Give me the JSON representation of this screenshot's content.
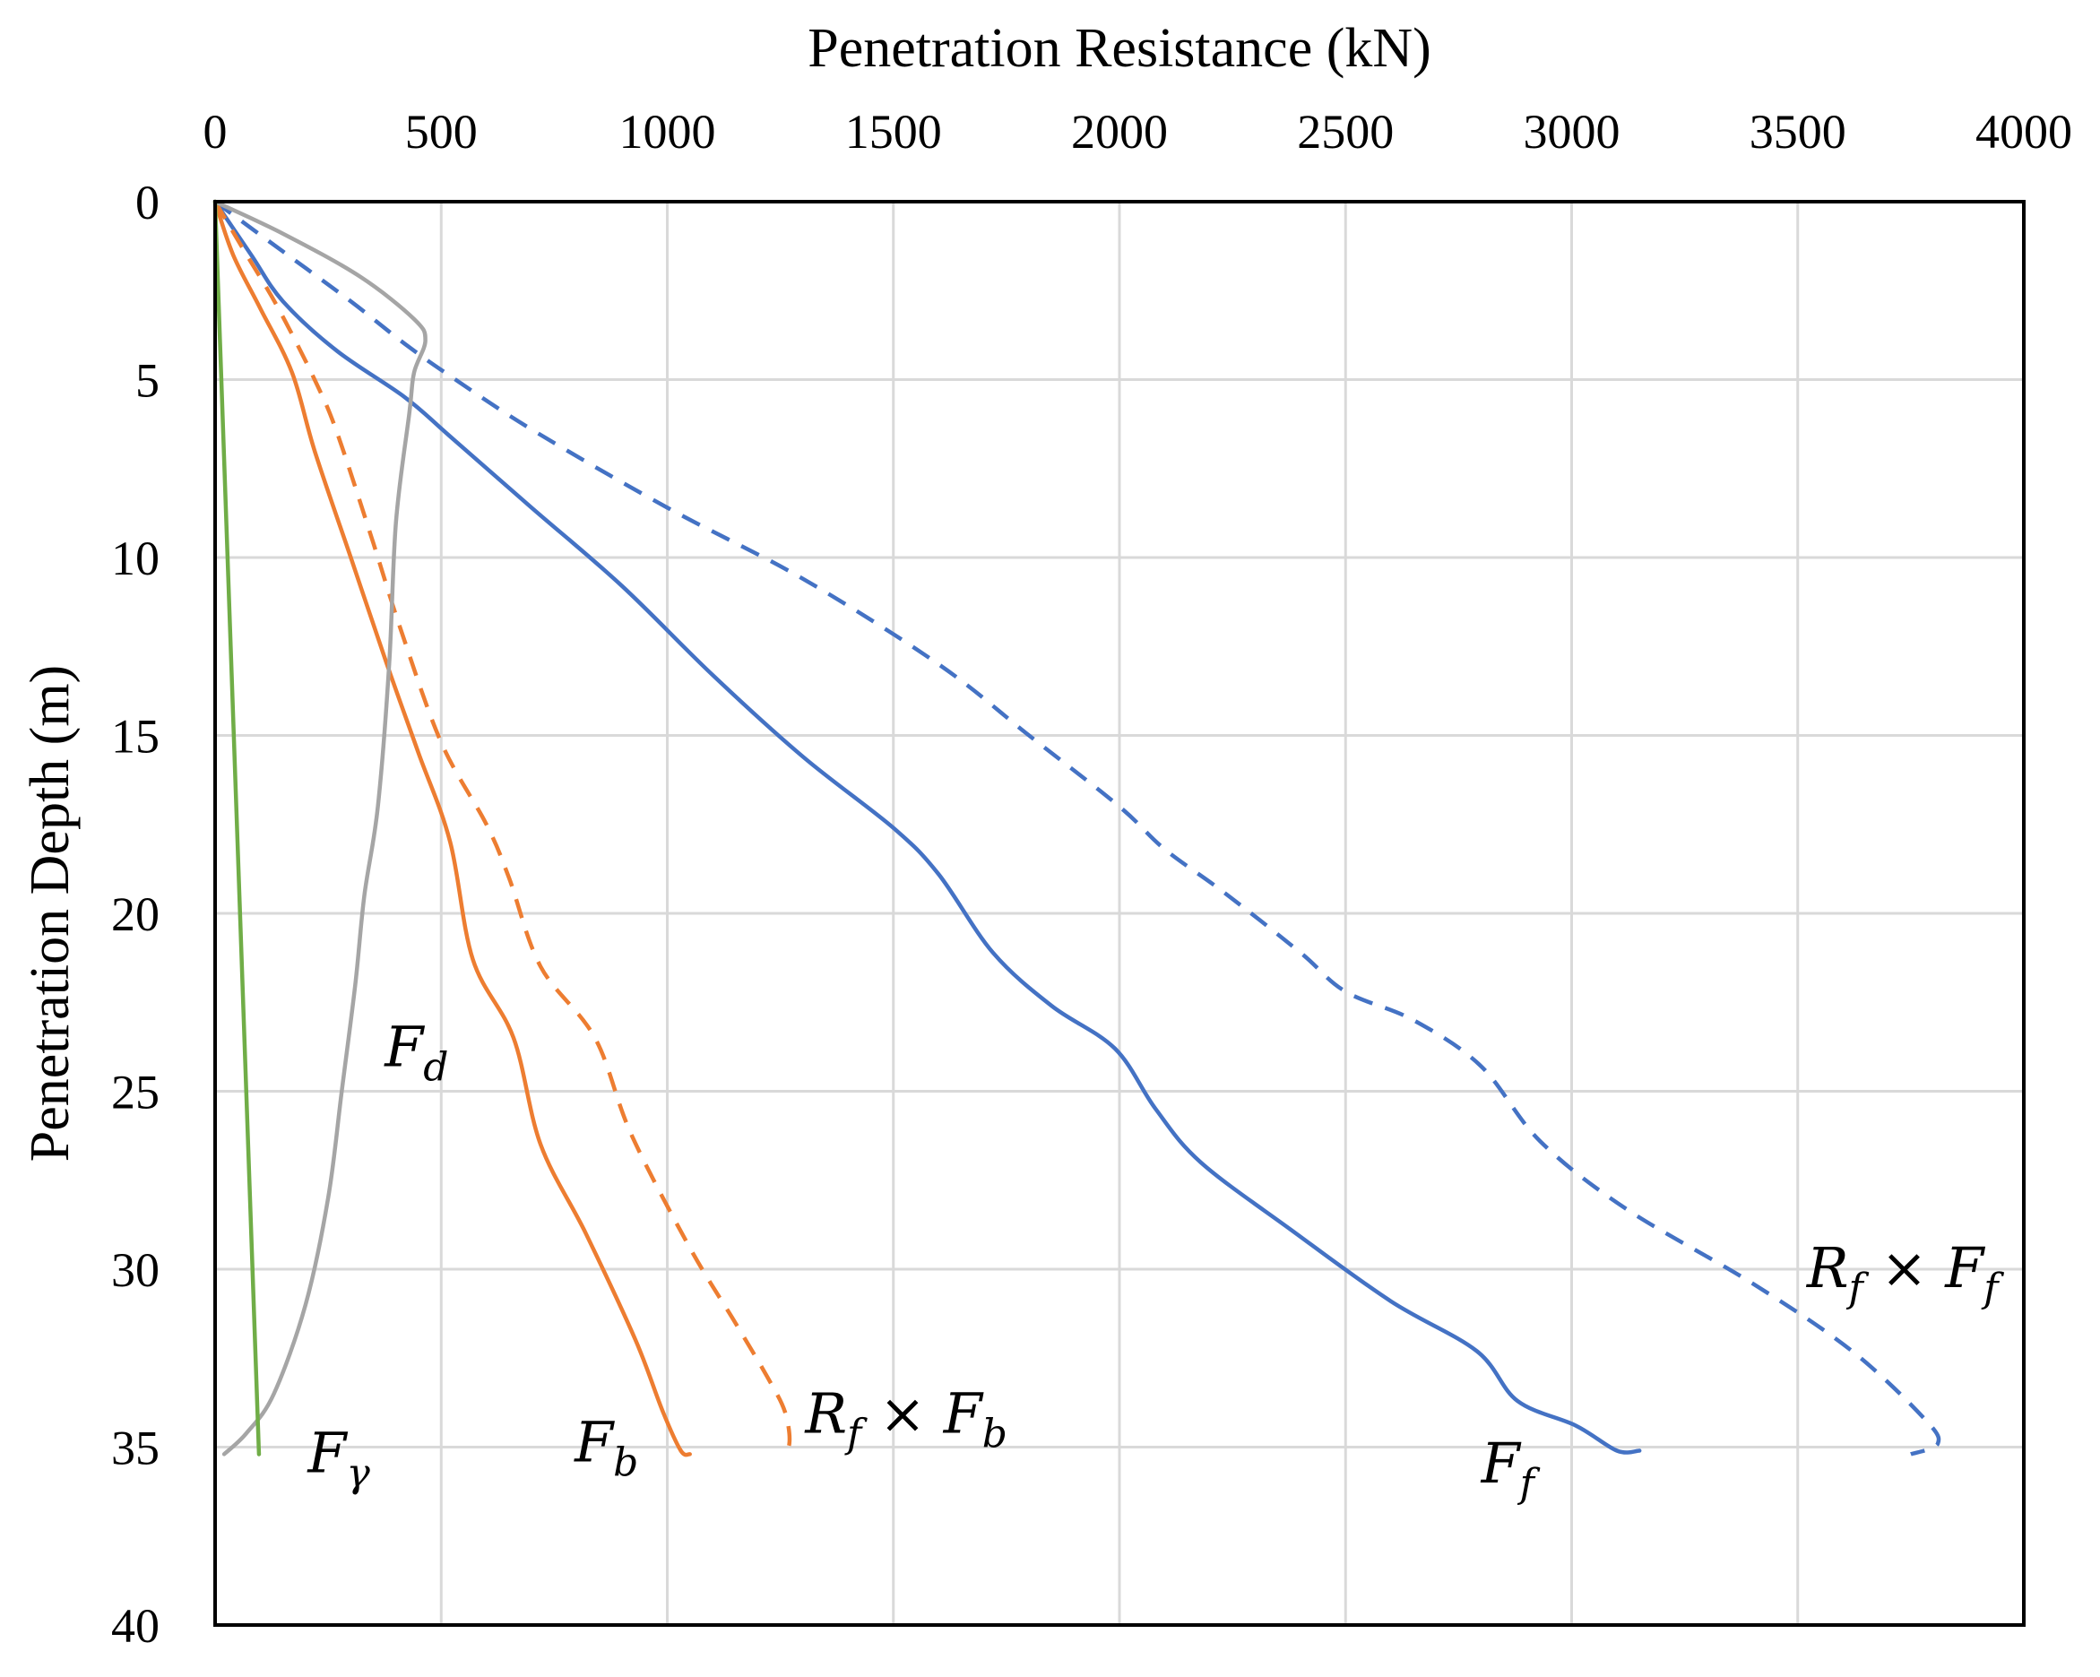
{
  "chart_data": {
    "type": "line",
    "title": "",
    "xlabel": "Penetration Resistance (kN)",
    "ylabel": "Penetration Depth (m)",
    "x_axis_position": "top",
    "y_axis_inverted": true,
    "xlim": [
      0,
      4000
    ],
    "ylim": [
      0,
      40
    ],
    "xticks": [
      "0",
      "500",
      "1000",
      "1500",
      "2000",
      "2500",
      "3000",
      "3500",
      "4000"
    ],
    "yticks": [
      "0",
      "5",
      "10",
      "15",
      "20",
      "25",
      "30",
      "35",
      "40"
    ],
    "grid": true,
    "legend": "none (inline curve labels)",
    "series": [
      {
        "name": "F_f",
        "label_main": "F",
        "label_sub": "f",
        "color": "#4472C4",
        "dash": "solid",
        "points": [
          [
            0,
            0
          ],
          [
            80,
            1.5
          ],
          [
            150,
            2.8
          ],
          [
            270,
            4.2
          ],
          [
            420,
            5.5
          ],
          [
            520,
            6.6
          ],
          [
            700,
            8.6
          ],
          [
            900,
            10.8
          ],
          [
            1100,
            13.3
          ],
          [
            1300,
            15.6
          ],
          [
            1500,
            17.6
          ],
          [
            1600,
            18.9
          ],
          [
            1720,
            21.1
          ],
          [
            1850,
            22.6
          ],
          [
            1990,
            23.8
          ],
          [
            2080,
            25.5
          ],
          [
            2180,
            27.0
          ],
          [
            2380,
            28.9
          ],
          [
            2600,
            30.9
          ],
          [
            2790,
            32.3
          ],
          [
            2880,
            33.7
          ],
          [
            3010,
            34.4
          ],
          [
            3100,
            35.1
          ],
          [
            3150,
            35.1
          ]
        ]
      },
      {
        "name": "R_f x F_f",
        "label_main": "R",
        "label_sub": "f",
        "label_op": "×",
        "label_main2": "F",
        "label_sub2": "f",
        "color": "#4472C4",
        "dash": "dashed",
        "points": [
          [
            0,
            0
          ],
          [
            150,
            1.4
          ],
          [
            300,
            2.8
          ],
          [
            420,
            4.0
          ],
          [
            520,
            4.9
          ],
          [
            700,
            6.4
          ],
          [
            1000,
            8.6
          ],
          [
            1300,
            10.6
          ],
          [
            1600,
            13.0
          ],
          [
            1800,
            15.0
          ],
          [
            2000,
            17.0
          ],
          [
            2100,
            18.2
          ],
          [
            2230,
            19.4
          ],
          [
            2400,
            21.1
          ],
          [
            2500,
            22.2
          ],
          [
            2650,
            23.0
          ],
          [
            2800,
            24.3
          ],
          [
            2930,
            26.4
          ],
          [
            3120,
            28.3
          ],
          [
            3400,
            30.4
          ],
          [
            3620,
            32.3
          ],
          [
            3780,
            34.2
          ],
          [
            3810,
            34.9
          ],
          [
            3750,
            35.2
          ]
        ]
      },
      {
        "name": "F_b",
        "label_main": "F",
        "label_sub": "b",
        "color": "#ED7D31",
        "dash": "solid",
        "points": [
          [
            0,
            0
          ],
          [
            40,
            1.5
          ],
          [
            100,
            3.0
          ],
          [
            170,
            4.8
          ],
          [
            220,
            7.0
          ],
          [
            300,
            10.0
          ],
          [
            380,
            13.0
          ],
          [
            450,
            15.5
          ],
          [
            520,
            18.0
          ],
          [
            570,
            21.3
          ],
          [
            660,
            23.5
          ],
          [
            720,
            26.5
          ],
          [
            820,
            29.0
          ],
          [
            930,
            32.0
          ],
          [
            990,
            34.0
          ],
          [
            1030,
            35.1
          ],
          [
            1050,
            35.2
          ]
        ]
      },
      {
        "name": "R_f x F_b",
        "label_main": "R",
        "label_sub": "f",
        "label_op": "×",
        "label_main2": "F",
        "label_sub2": "b",
        "color": "#ED7D31",
        "dash": "dashed",
        "points": [
          [
            0,
            0
          ],
          [
            70,
            1.5
          ],
          [
            140,
            3.0
          ],
          [
            220,
            5.0
          ],
          [
            270,
            6.5
          ],
          [
            350,
            9.6
          ],
          [
            410,
            12.0
          ],
          [
            500,
            15.2
          ],
          [
            600,
            17.5
          ],
          [
            650,
            19.0
          ],
          [
            720,
            21.5
          ],
          [
            840,
            23.5
          ],
          [
            920,
            26.2
          ],
          [
            1050,
            29.4
          ],
          [
            1150,
            31.5
          ],
          [
            1220,
            33.0
          ],
          [
            1260,
            34.0
          ],
          [
            1270,
            34.9
          ],
          [
            1250,
            35.2
          ]
        ]
      },
      {
        "name": "F_d",
        "label_main": "F",
        "label_sub": "d",
        "color": "#A5A5A5",
        "dash": "solid",
        "points": [
          [
            0,
            0
          ],
          [
            150,
            0.9
          ],
          [
            320,
            2.1
          ],
          [
            440,
            3.3
          ],
          [
            465,
            3.9
          ],
          [
            440,
            4.8
          ],
          [
            430,
            5.9
          ],
          [
            400,
            9.0
          ],
          [
            385,
            13.0
          ],
          [
            360,
            17.0
          ],
          [
            330,
            19.5
          ],
          [
            310,
            22.0
          ],
          [
            280,
            25.0
          ],
          [
            250,
            28.0
          ],
          [
            200,
            31.0
          ],
          [
            130,
            33.5
          ],
          [
            70,
            34.6
          ],
          [
            20,
            35.2
          ]
        ]
      },
      {
        "name": "F_gamma",
        "label_main": "F",
        "label_sub": "γ",
        "color": "#70AD47",
        "dash": "solid",
        "points": [
          [
            0,
            0
          ],
          [
            97,
            35.2
          ]
        ]
      }
    ],
    "annotations": [
      {
        "text_main": "F",
        "text_sub": "d",
        "x": 375,
        "y": 24.3
      },
      {
        "text_main": "F",
        "text_sub": "γ",
        "x": 205,
        "y": 35.7
      },
      {
        "text_main": "F",
        "text_sub": "b",
        "x": 795,
        "y": 35.4
      },
      {
        "text_main": "R",
        "text_sub": "f",
        "text_op": "×",
        "text_main2": "F",
        "text_sub2": "b",
        "x": 1305,
        "y": 34.6
      },
      {
        "text_main": "F",
        "text_sub": "f",
        "x": 2800,
        "y": 36.0
      },
      {
        "text_main": "R",
        "text_sub": "f",
        "text_op": "×",
        "text_main2": "F",
        "text_sub2": "f",
        "x": 3520,
        "y": 30.5
      }
    ]
  }
}
